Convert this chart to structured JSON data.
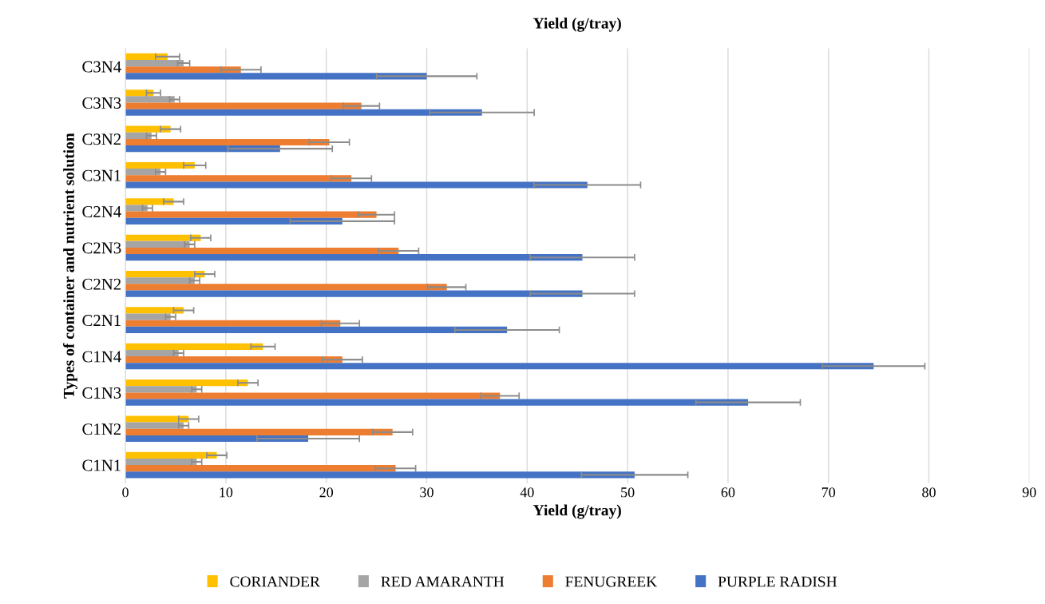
{
  "chart_data": {
    "type": "bar",
    "orientation": "horizontal",
    "title": "Yield (g/tray)",
    "xlabel": "Yield (g/tray)",
    "ylabel": "Types of container and nutrient solution",
    "categories": [
      "C3N4",
      "C3N3",
      "C3N2",
      "C3N1",
      "C2N4",
      "C2N3",
      "C2N2",
      "C2N1",
      "C1N4",
      "C1N3",
      "C1N2",
      "C1N1"
    ],
    "series": [
      {
        "name": "CORIANDER",
        "color": "#ffc000",
        "values": [
          4.2,
          2.8,
          4.5,
          6.9,
          4.8,
          7.5,
          7.9,
          5.8,
          13.7,
          12.2,
          6.3,
          9.1
        ],
        "errors": [
          1.2,
          0.7,
          1,
          1.1,
          1,
          1,
          1,
          1,
          1.2,
          1,
          1,
          1
        ]
      },
      {
        "name": "RED AMARANTH",
        "color": "#a5a5a5",
        "values": [
          5.8,
          4.9,
          2.6,
          3.5,
          2.2,
          6.4,
          6.9,
          4.5,
          5.3,
          7.1,
          5.8,
          7.1
        ],
        "errors": [
          0.6,
          0.5,
          0.5,
          0.5,
          0.5,
          0.5,
          0.5,
          0.5,
          0.5,
          0.5,
          0.5,
          0.5
        ]
      },
      {
        "name": "FENUGREEK",
        "color": "#ed7d31",
        "values": [
          11.5,
          23.5,
          20.3,
          22.5,
          25,
          27.2,
          32,
          21.4,
          21.6,
          37.3,
          26.6,
          26.9
        ],
        "errors": [
          2,
          1.8,
          2,
          2,
          1.8,
          2,
          1.9,
          1.9,
          2,
          1.9,
          2,
          2
        ]
      },
      {
        "name": "PURPLE RADISH",
        "color": "#4472c4",
        "values": [
          30,
          35.5,
          15.4,
          46,
          21.6,
          45.5,
          45.5,
          38,
          74.5,
          62,
          18.2,
          50.7
        ],
        "errors": [
          5,
          5.2,
          5.2,
          5.3,
          5.2,
          5.2,
          5.2,
          5.2,
          5.1,
          5.2,
          5.1,
          5.3
        ]
      }
    ],
    "xlim": [
      0,
      90
    ],
    "xticks": [
      0,
      10,
      20,
      30,
      40,
      50,
      60,
      70,
      80,
      90
    ],
    "grid": "x",
    "legend": "bottom"
  }
}
